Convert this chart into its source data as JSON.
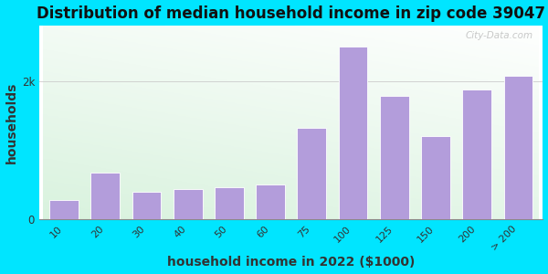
{
  "title": "Distribution of median household income in zip code 39047",
  "xlabel": "household income in 2022 ($1000)",
  "ylabel": "households",
  "categories": [
    "10",
    "20",
    "30",
    "40",
    "50",
    "60",
    "75",
    "100",
    "125",
    "150",
    "200",
    "> 200"
  ],
  "values": [
    280,
    680,
    400,
    440,
    460,
    500,
    1320,
    2500,
    1780,
    1200,
    1880,
    2080
  ],
  "bar_color": "#b39ddb",
  "bar_edge_color": "#ffffff",
  "yticks": [
    0,
    2000
  ],
  "ytick_labels": [
    "0",
    "2k"
  ],
  "background_outer": "#00e5ff",
  "plot_bg_colors": [
    "#c8e6c9",
    "#e8f5e9",
    "#f1f8e9",
    "#ffffff"
  ],
  "title_fontsize": 12,
  "axis_label_fontsize": 10,
  "watermark_text": "City-Data.com",
  "ylim": [
    0,
    2800
  ],
  "bar_width": 0.7
}
